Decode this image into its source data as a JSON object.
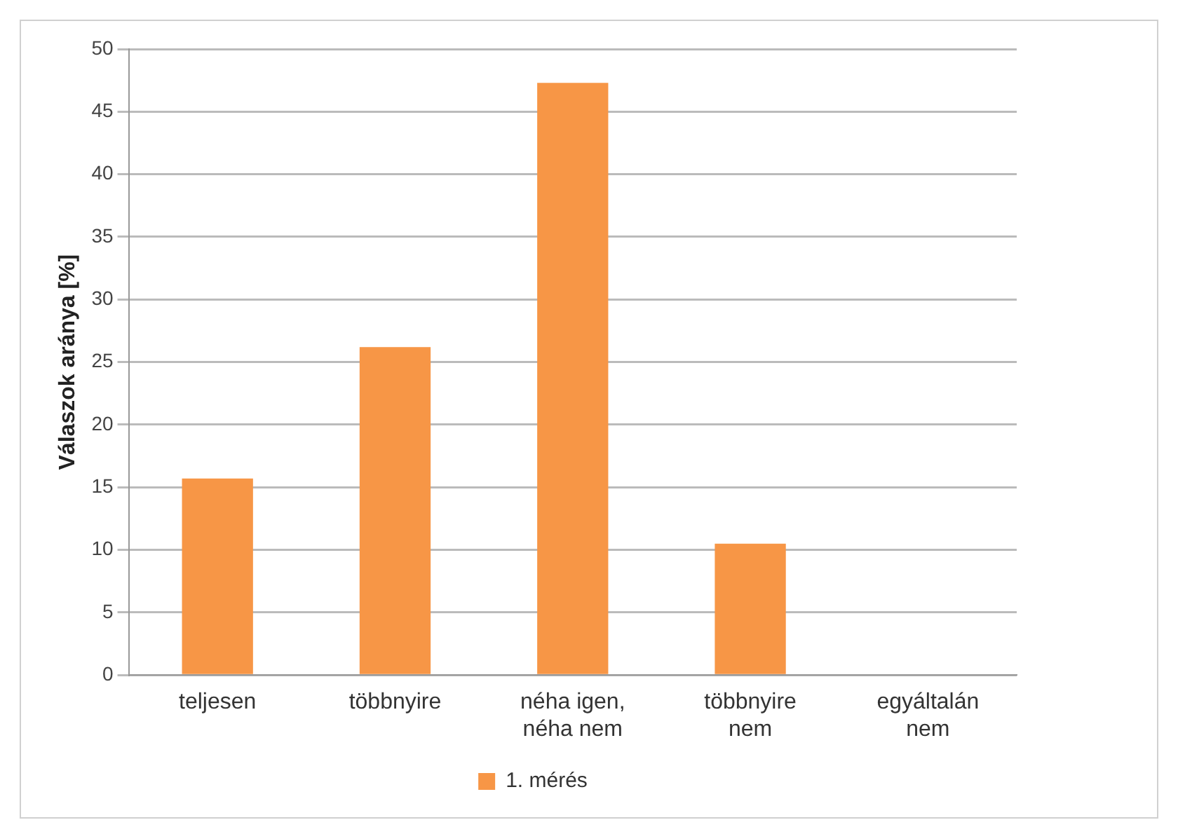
{
  "chart_data": {
    "type": "bar",
    "ylabel": "Válaszok aránya [%]",
    "categories": [
      "teljesen",
      "többnyire",
      "néha igen,\nnéha nem",
      "többnyire\nnem",
      "egyáltalán\nnem"
    ],
    "series": [
      {
        "name": "1. mérés",
        "color": "#f79646",
        "values": [
          15.7,
          26.2,
          47.3,
          10.5,
          0
        ]
      }
    ],
    "ylim": [
      0,
      50
    ],
    "yticks": [
      0,
      5,
      10,
      15,
      20,
      25,
      30,
      35,
      40,
      45,
      50
    ],
    "grid": "y",
    "legend": "bottom"
  }
}
